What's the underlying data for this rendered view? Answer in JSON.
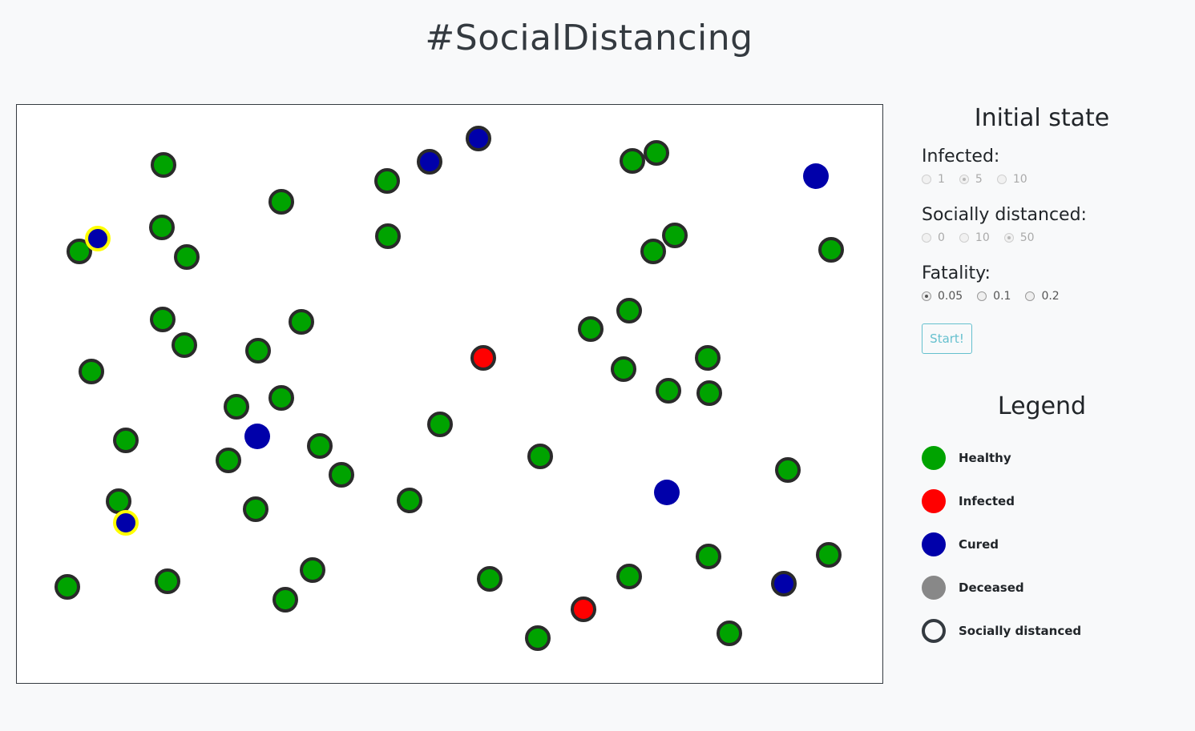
{
  "header": {
    "title": "#SocialDistancing"
  },
  "panel": {
    "initial_state_title": "Initial state",
    "infected": {
      "label": "Infected:",
      "options": [
        "1",
        "5",
        "10"
      ],
      "selected": "5",
      "enabled": false
    },
    "socially_distanced": {
      "label": "Socially distanced:",
      "options": [
        "0",
        "10",
        "50"
      ],
      "selected": "50",
      "enabled": false
    },
    "fatality": {
      "label": "Fatality:",
      "options": [
        "0.05",
        "0.1",
        "0.2"
      ],
      "selected": "0.05",
      "enabled": true
    },
    "start_label": "Start!",
    "legend_title": "Legend",
    "legend": [
      {
        "label": "Healthy",
        "color": "#00a300",
        "icon": "healthy-dot-icon"
      },
      {
        "label": "Infected",
        "color": "#ff0000",
        "icon": "infected-dot-icon"
      },
      {
        "label": "Cured",
        "color": "#0000aa",
        "icon": "cured-dot-icon"
      },
      {
        "label": "Deceased",
        "color": "#888888",
        "icon": "deceased-dot-icon"
      },
      {
        "label": "Socially distanced",
        "color": "#343a40",
        "icon": "socially-distanced-ring-icon"
      }
    ]
  },
  "simulation": {
    "colors": {
      "healthy": "#00a300",
      "infected": "#ff0000",
      "cured": "#0000aa",
      "deceased": "#888888",
      "distanced_stroke": "#2a2a2a",
      "highlight_stroke": "#ffff00"
    }
  }
}
